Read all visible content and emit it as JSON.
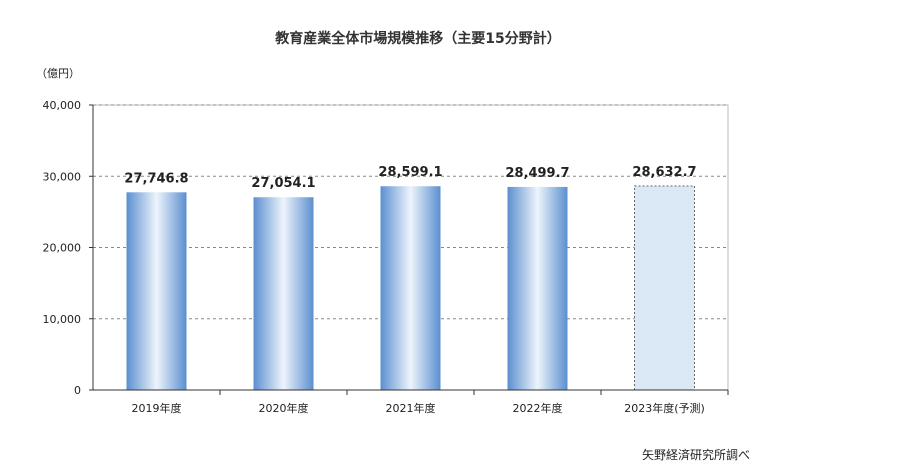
{
  "chart_data": {
    "type": "bar",
    "title": "教育産業全体市場規模推移（主要15分野計）",
    "unit_label": "（億円）",
    "categories": [
      "2019年度",
      "2020年度",
      "2021年度",
      "2022年度",
      "2023年度(予測)"
    ],
    "values": [
      27746.8,
      27054.1,
      28599.1,
      28499.7,
      28632.7
    ],
    "value_labels": [
      "27,746.8",
      "27,054.1",
      "28,599.1",
      "28,499.7",
      "28,632.7"
    ],
    "y_ticks": [
      "0",
      "10,000",
      "20,000",
      "30,000",
      "40,000"
    ],
    "ylim": [
      0,
      40000
    ],
    "grid": true,
    "forecast_index": 4,
    "source": "矢野経済研究所調べ",
    "colors": {
      "bar_edge": "#5b8fcf",
      "bar_center": "#eef4fc",
      "forecast_fill": "#dbe8f6",
      "grid": "#888888",
      "axis": "#333333"
    }
  }
}
